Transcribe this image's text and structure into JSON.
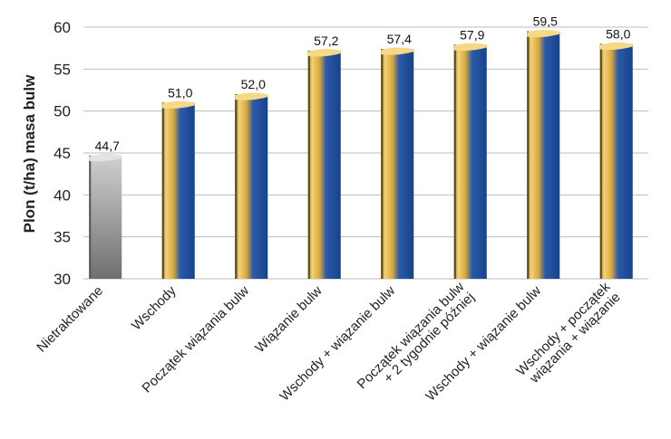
{
  "chart_data": {
    "type": "bar",
    "ylabel": "Plon (t/ha) masa bulw",
    "ylim": [
      30,
      60
    ],
    "yticks": [
      30,
      35,
      40,
      45,
      50,
      55,
      60
    ],
    "grid": true,
    "categories": [
      [
        "Nietraktowane"
      ],
      [
        "Wschody"
      ],
      [
        "Początek wiązania bulw"
      ],
      [
        "Wiązanie bulw"
      ],
      [
        "Wschody + wiązanie bulw"
      ],
      [
        "Początek wiązania bulw",
        "+ 2 tygodnie później"
      ],
      [
        "Wschody + wiązanie bulw"
      ],
      [
        "Wschody + początek",
        "wiązania + wiązanie"
      ]
    ],
    "values": [
      44.7,
      51.0,
      52.0,
      57.2,
      57.4,
      57.9,
      59.5,
      58.0
    ],
    "value_labels": [
      "44,7",
      "51,0",
      "52,0",
      "57,2",
      "57,4",
      "57,9",
      "59,5",
      "58,0"
    ],
    "bar_styles": [
      "control",
      "treated",
      "treated",
      "treated",
      "treated",
      "treated",
      "treated",
      "treated"
    ],
    "colors": {
      "control": "#9a9a9a",
      "gold": "#e3b23c",
      "blue": "#1f4f9a",
      "grid": "#bdbdbd"
    }
  }
}
